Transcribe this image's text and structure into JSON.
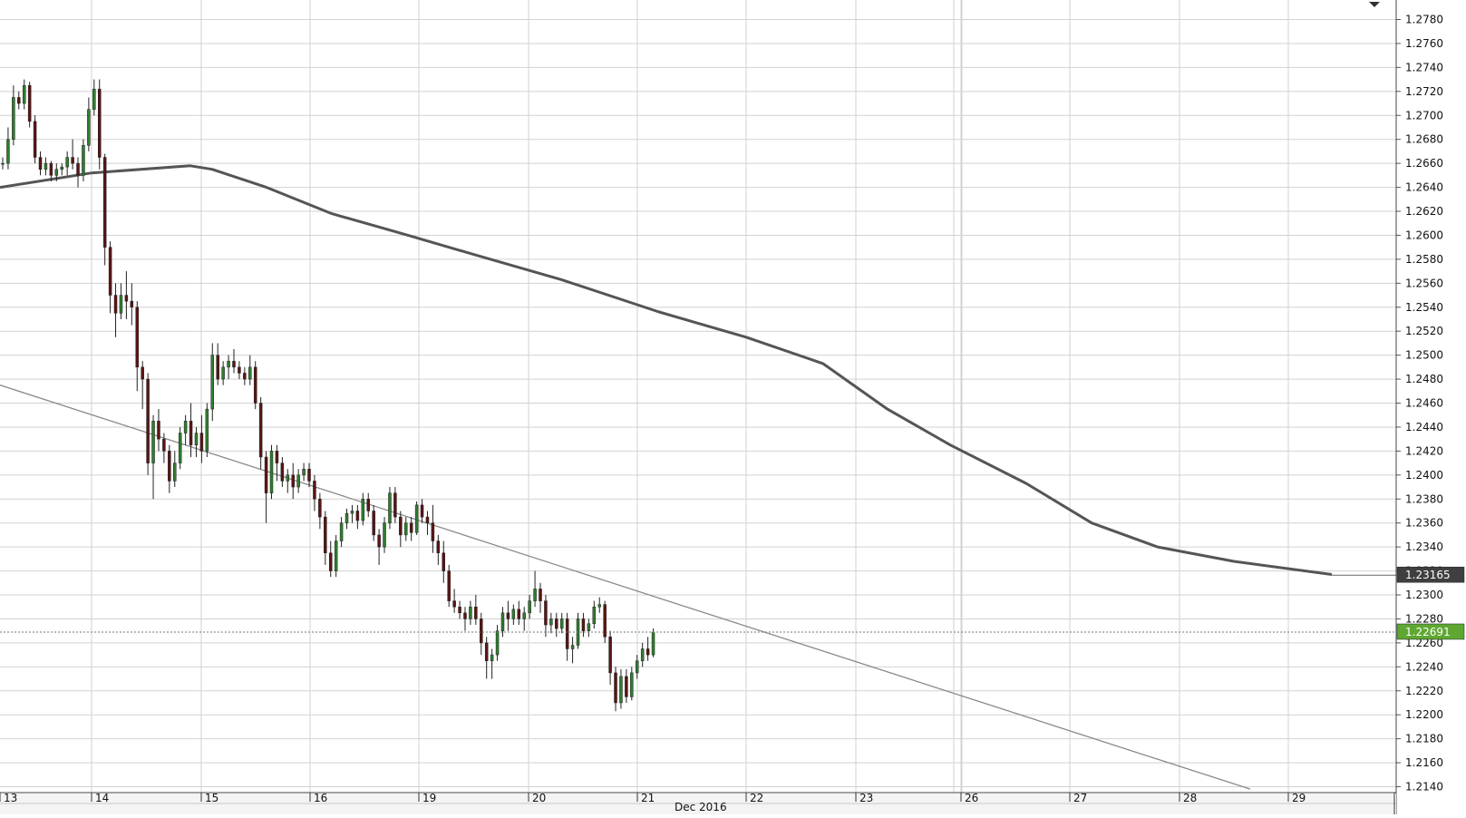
{
  "chart_data": {
    "type": "candlestick",
    "instrument_note": "",
    "y_axis": {
      "ylim": [
        1.2125,
        1.2795
      ],
      "ticks": [
        "1.2780",
        "1.2760",
        "1.2740",
        "1.2720",
        "1.2700",
        "1.2680",
        "1.2660",
        "1.2640",
        "1.2620",
        "1.2600",
        "1.2580",
        "1.2560",
        "1.2540",
        "1.2520",
        "1.2500",
        "1.2480",
        "1.2460",
        "1.2440",
        "1.2420",
        "1.2400",
        "1.2380",
        "1.2360",
        "1.2340",
        "1.2320",
        "1.2300",
        "1.2280",
        "1.2260",
        "1.2240",
        "1.2220",
        "1.2200",
        "1.2180",
        "1.2160",
        "1.2140"
      ]
    },
    "x_axis": {
      "month_label": "Dec 2016",
      "day_labels": [
        "13",
        "14",
        "15",
        "16",
        "19",
        "20",
        "21",
        "22",
        "23",
        "26",
        "27",
        "28",
        "29"
      ],
      "session_breaks_after": [
        "16",
        "23"
      ]
    },
    "grid": true,
    "moving_average": {
      "name": "",
      "points": [
        [
          0,
          1.264
        ],
        [
          1.0,
          1.2652
        ],
        [
          1.9,
          1.2658
        ],
        [
          2.1,
          1.2655
        ],
        [
          2.6,
          1.264
        ],
        [
          3.2,
          1.2618
        ],
        [
          3.9,
          1.26
        ],
        [
          4.5,
          1.2584
        ],
        [
          5.3,
          1.2563
        ],
        [
          6.2,
          1.2536
        ],
        [
          7.0,
          1.2515
        ],
        [
          7.7,
          1.2493
        ],
        [
          8.3,
          1.2455
        ],
        [
          8.9,
          1.2425
        ],
        [
          9.6,
          1.2393
        ],
        [
          10.2,
          1.236
        ],
        [
          10.8,
          1.234
        ],
        [
          11.5,
          1.2328
        ],
        [
          12.4,
          1.2317
        ]
      ],
      "last_value": "1.23165",
      "color": "#555555"
    },
    "trendline": {
      "points": [
        [
          0,
          1.2475
        ],
        [
          11.65,
          1.2138
        ]
      ],
      "color": "#8a8a8a"
    },
    "current_price": {
      "value": 1.2269,
      "label": "1.22691",
      "color": "#5ea832"
    },
    "colors": {
      "bull": "#2f7d2f",
      "bear": "#5a1414",
      "grid": "#d2d2d2",
      "ma_label_bg": "#3f3f3f"
    },
    "candles": [
      [
        1.266,
        1.2665,
        1.2655,
        1.266
      ],
      [
        1.266,
        1.269,
        1.2655,
        1.268
      ],
      [
        1.268,
        1.2725,
        1.2675,
        1.2715
      ],
      [
        1.2715,
        1.272,
        1.2705,
        1.271
      ],
      [
        1.271,
        1.273,
        1.2705,
        1.2725
      ],
      [
        1.2725,
        1.2728,
        1.269,
        1.2695
      ],
      [
        1.2695,
        1.27,
        1.266,
        1.2665
      ],
      [
        1.2665,
        1.267,
        1.265,
        1.2655
      ],
      [
        1.2655,
        1.2665,
        1.265,
        1.266
      ],
      [
        1.266,
        1.2662,
        1.2645,
        1.265
      ],
      [
        1.265,
        1.266,
        1.2645,
        1.2655
      ],
      [
        1.2655,
        1.266,
        1.265,
        1.2657
      ],
      [
        1.2657,
        1.267,
        1.265,
        1.2665
      ],
      [
        1.2665,
        1.268,
        1.2655,
        1.266
      ],
      [
        1.266,
        1.2665,
        1.264,
        1.265
      ],
      [
        1.265,
        1.268,
        1.2645,
        1.2675
      ],
      [
        1.2675,
        1.2715,
        1.267,
        1.2705
      ],
      [
        1.2705,
        1.273,
        1.27,
        1.2722
      ],
      [
        1.2722,
        1.273,
        1.2655,
        1.2665
      ],
      [
        1.2665,
        1.2668,
        1.2575,
        1.259
      ],
      [
        1.259,
        1.2595,
        1.2535,
        1.255
      ],
      [
        1.255,
        1.256,
        1.2515,
        1.2535
      ],
      [
        1.2535,
        1.256,
        1.253,
        1.255
      ],
      [
        1.255,
        1.257,
        1.253,
        1.2545
      ],
      [
        1.2545,
        1.256,
        1.2525,
        1.254
      ],
      [
        1.254,
        1.2545,
        1.247,
        1.249
      ],
      [
        1.249,
        1.2495,
        1.2455,
        1.248
      ],
      [
        1.248,
        1.2485,
        1.24,
        1.241
      ],
      [
        1.241,
        1.245,
        1.238,
        1.2445
      ],
      [
        1.2445,
        1.2455,
        1.242,
        1.243
      ],
      [
        1.243,
        1.2435,
        1.241,
        1.242
      ],
      [
        1.242,
        1.2425,
        1.2385,
        1.2395
      ],
      [
        1.2395,
        1.242,
        1.239,
        1.241
      ],
      [
        1.241,
        1.244,
        1.2405,
        1.2435
      ],
      [
        1.2435,
        1.245,
        1.2425,
        1.2445
      ],
      [
        1.2445,
        1.246,
        1.2415,
        1.2425
      ],
      [
        1.2425,
        1.244,
        1.2415,
        1.2435
      ],
      [
        1.2435,
        1.245,
        1.241,
        1.242
      ],
      [
        1.242,
        1.246,
        1.2415,
        1.2455
      ],
      [
        1.2455,
        1.251,
        1.2445,
        1.25
      ],
      [
        1.25,
        1.251,
        1.2475,
        1.248
      ],
      [
        1.248,
        1.2495,
        1.2475,
        1.249
      ],
      [
        1.249,
        1.25,
        1.248,
        1.2495
      ],
      [
        1.2495,
        1.2505,
        1.2485,
        1.249
      ],
      [
        1.249,
        1.2495,
        1.248,
        1.2485
      ],
      [
        1.2485,
        1.249,
        1.2475,
        1.248
      ],
      [
        1.248,
        1.25,
        1.2475,
        1.249
      ],
      [
        1.249,
        1.2495,
        1.2455,
        1.246
      ],
      [
        1.246,
        1.2465,
        1.2405,
        1.2415
      ],
      [
        1.2415,
        1.242,
        1.236,
        1.2385
      ],
      [
        1.2385,
        1.2425,
        1.238,
        1.242
      ],
      [
        1.242,
        1.2425,
        1.2395,
        1.241
      ],
      [
        1.241,
        1.2415,
        1.239,
        1.2395
      ],
      [
        1.2395,
        1.2405,
        1.2385,
        1.24
      ],
      [
        1.24,
        1.241,
        1.238,
        1.239
      ],
      [
        1.239,
        1.2405,
        1.2385,
        1.24
      ],
      [
        1.24,
        1.241,
        1.2395,
        1.2405
      ],
      [
        1.2405,
        1.241,
        1.239,
        1.2395
      ],
      [
        1.2395,
        1.24,
        1.237,
        1.238
      ],
      [
        1.238,
        1.2385,
        1.2355,
        1.2365
      ],
      [
        1.2365,
        1.237,
        1.2325,
        1.2335
      ],
      [
        1.2335,
        1.2345,
        1.2315,
        1.232
      ],
      [
        1.232,
        1.235,
        1.2315,
        1.2345
      ],
      [
        1.2345,
        1.2365,
        1.234,
        1.236
      ],
      [
        1.236,
        1.2372,
        1.2355,
        1.2368
      ],
      [
        1.2368,
        1.2375,
        1.236,
        1.237
      ],
      [
        1.237,
        1.2375,
        1.2355,
        1.2362
      ],
      [
        1.2362,
        1.2385,
        1.2358,
        1.238
      ],
      [
        1.238,
        1.2385,
        1.2365,
        1.237
      ],
      [
        1.237,
        1.2375,
        1.2345,
        1.235
      ],
      [
        1.235,
        1.2355,
        1.2325,
        1.234
      ],
      [
        1.234,
        1.2365,
        1.2335,
        1.236
      ],
      [
        1.236,
        1.239,
        1.2355,
        1.2385
      ],
      [
        1.2385,
        1.239,
        1.236,
        1.2365
      ],
      [
        1.2365,
        1.237,
        1.234,
        1.235
      ],
      [
        1.235,
        1.2365,
        1.2345,
        1.236
      ],
      [
        1.236,
        1.2365,
        1.2345,
        1.2352
      ],
      [
        1.2352,
        1.2378,
        1.235,
        1.2375
      ],
      [
        1.2375,
        1.238,
        1.236,
        1.2365
      ],
      [
        1.2365,
        1.237,
        1.235,
        1.236
      ],
      [
        1.236,
        1.2375,
        1.2335,
        1.2345
      ],
      [
        1.2345,
        1.235,
        1.2325,
        1.2335
      ],
      [
        1.2335,
        1.2345,
        1.231,
        1.232
      ],
      [
        1.232,
        1.2325,
        1.229,
        1.2295
      ],
      [
        1.2295,
        1.2305,
        1.2285,
        1.229
      ],
      [
        1.229,
        1.2295,
        1.228,
        1.2285
      ],
      [
        1.2285,
        1.229,
        1.227,
        1.228
      ],
      [
        1.228,
        1.2295,
        1.2275,
        1.229
      ],
      [
        1.229,
        1.23,
        1.2275,
        1.228
      ],
      [
        1.228,
        1.2285,
        1.225,
        1.226
      ],
      [
        1.226,
        1.2265,
        1.223,
        1.2245
      ],
      [
        1.2245,
        1.2255,
        1.223,
        1.225
      ],
      [
        1.225,
        1.2275,
        1.2245,
        1.227
      ],
      [
        1.227,
        1.229,
        1.2265,
        1.2285
      ],
      [
        1.2285,
        1.2295,
        1.227,
        1.228
      ],
      [
        1.228,
        1.2292,
        1.2275,
        1.2288
      ],
      [
        1.2288,
        1.2295,
        1.2275,
        1.228
      ],
      [
        1.228,
        1.229,
        1.227,
        1.2285
      ],
      [
        1.2285,
        1.23,
        1.228,
        1.2295
      ],
      [
        1.2295,
        1.232,
        1.229,
        1.2305
      ],
      [
        1.2305,
        1.231,
        1.2285,
        1.2295
      ],
      [
        1.2295,
        1.23,
        1.2265,
        1.2275
      ],
      [
        1.2275,
        1.2285,
        1.2268,
        1.228
      ],
      [
        1.228,
        1.2285,
        1.2265,
        1.2272
      ],
      [
        1.2272,
        1.2285,
        1.2268,
        1.228
      ],
      [
        1.228,
        1.2285,
        1.2245,
        1.2255
      ],
      [
        1.2255,
        1.2265,
        1.2243,
        1.2258
      ],
      [
        1.2258,
        1.2285,
        1.2255,
        1.228
      ],
      [
        1.228,
        1.2285,
        1.2265,
        1.227
      ],
      [
        1.227,
        1.228,
        1.2265,
        1.2276
      ],
      [
        1.2276,
        1.2295,
        1.2272,
        1.229
      ],
      [
        1.229,
        1.2298,
        1.2285,
        1.2292
      ],
      [
        1.2292,
        1.2295,
        1.226,
        1.2265
      ],
      [
        1.2265,
        1.227,
        1.2225,
        1.2235
      ],
      [
        1.2235,
        1.224,
        1.2203,
        1.221
      ],
      [
        1.221,
        1.2238,
        1.2205,
        1.2232
      ],
      [
        1.2232,
        1.2238,
        1.221,
        1.2215
      ],
      [
        1.2215,
        1.224,
        1.2212,
        1.2235
      ],
      [
        1.2235,
        1.225,
        1.223,
        1.2245
      ],
      [
        1.2245,
        1.226,
        1.224,
        1.2255
      ],
      [
        1.2255,
        1.2265,
        1.2245,
        1.225
      ],
      [
        1.225,
        1.2272,
        1.2248,
        1.2269
      ]
    ]
  }
}
